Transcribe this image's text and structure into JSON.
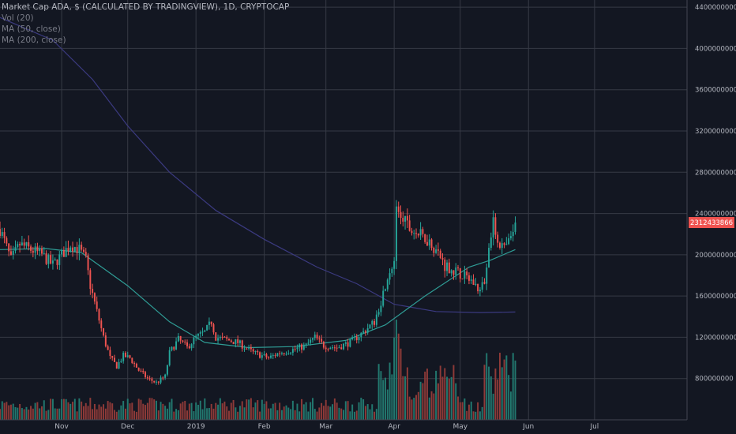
{
  "legend": {
    "title": "Market Cap ADA, $ (CALCULATED BY TRADINGVIEW), 1D, CRYPTOCAP",
    "vol": "Vol (20)",
    "ma50": "MA (50, close)",
    "ma200": "MA (200, close)"
  },
  "colors": {
    "background": "#131722",
    "grid": "#363a45",
    "up": "#26a69a",
    "down": "#ef5350",
    "vol_up": "#22786f",
    "vol_down": "#8e3a38",
    "ma50": "#2f9c95",
    "ma200": "#3b3a80",
    "price_label_bg": "#ef5350"
  },
  "chart_data": {
    "type": "candlestick",
    "y_axis": {
      "ticks": [
        800000000,
        1200000000,
        1600000000,
        2000000000,
        2400000000,
        2800000000,
        3200000000,
        3600000000,
        4000000000,
        4400000000
      ],
      "tick_labels": [
        "800000000",
        "1200000000",
        "1600000000",
        "2000000000",
        "2400000000",
        "2800000000",
        "3200000000",
        "3600000000",
        "4000000000",
        "4400000000"
      ],
      "range": [
        400000000,
        4470000000
      ]
    },
    "x_axis": {
      "labels": [
        "Nov",
        "Dec",
        "2019",
        "Feb",
        "Mar",
        "Apr",
        "May",
        "Jun",
        "Jul"
      ],
      "label_dates": [
        "2018-11-01",
        "2018-12-01",
        "2019-01-01",
        "2019-02-01",
        "2019-03-01",
        "2019-04-01",
        "2019-05-01",
        "2019-06-01",
        "2019-07-01"
      ],
      "range": [
        "2018-10-04",
        "2019-08-12"
      ]
    },
    "current_price_label": "2312433866",
    "current_price": 2312433866,
    "price_points": [
      [
        "2018-10-04",
        2250000000
      ],
      [
        "2018-10-09",
        1950000000
      ],
      [
        "2018-10-13",
        2100000000
      ],
      [
        "2018-10-18",
        2050000000
      ],
      [
        "2018-10-23",
        2000000000
      ],
      [
        "2018-10-28",
        1900000000
      ],
      [
        "2018-11-01",
        2000000000
      ],
      [
        "2018-11-05",
        2100000000
      ],
      [
        "2018-11-09",
        2050000000
      ],
      [
        "2018-11-12",
        1950000000
      ],
      [
        "2018-11-14",
        1700000000
      ],
      [
        "2018-11-17",
        1450000000
      ],
      [
        "2018-11-20",
        1200000000
      ],
      [
        "2018-11-23",
        1000000000
      ],
      [
        "2018-11-26",
        920000000
      ],
      [
        "2018-11-29",
        1020000000
      ],
      [
        "2018-12-02",
        1000000000
      ],
      [
        "2018-12-06",
        880000000
      ],
      [
        "2018-12-10",
        800000000
      ],
      [
        "2018-12-14",
        760000000
      ],
      [
        "2018-12-18",
        820000000
      ],
      [
        "2018-12-20",
        1050000000
      ],
      [
        "2018-12-24",
        1180000000
      ],
      [
        "2018-12-28",
        1100000000
      ],
      [
        "2019-01-01",
        1200000000
      ],
      [
        "2019-01-05",
        1250000000
      ],
      [
        "2019-01-08",
        1350000000
      ],
      [
        "2019-01-10",
        1200000000
      ],
      [
        "2019-01-14",
        1180000000
      ],
      [
        "2019-01-20",
        1150000000
      ],
      [
        "2019-01-27",
        1050000000
      ],
      [
        "2019-02-03",
        1000000000
      ],
      [
        "2019-02-08",
        1050000000
      ],
      [
        "2019-02-14",
        1080000000
      ],
      [
        "2019-02-20",
        1120000000
      ],
      [
        "2019-02-24",
        1200000000
      ],
      [
        "2019-02-28",
        1120000000
      ],
      [
        "2019-03-06",
        1100000000
      ],
      [
        "2019-03-12",
        1150000000
      ],
      [
        "2019-03-18",
        1250000000
      ],
      [
        "2019-03-23",
        1350000000
      ],
      [
        "2019-03-26",
        1550000000
      ],
      [
        "2019-03-29",
        1800000000
      ],
      [
        "2019-04-01",
        1950000000
      ],
      [
        "2019-04-02",
        2400000000
      ],
      [
        "2019-04-05",
        2350000000
      ],
      [
        "2019-04-08",
        2250000000
      ],
      [
        "2019-04-12",
        2200000000
      ],
      [
        "2019-04-16",
        2150000000
      ],
      [
        "2019-04-20",
        2050000000
      ],
      [
        "2019-04-24",
        1900000000
      ],
      [
        "2019-04-28",
        1850000000
      ],
      [
        "2019-05-02",
        1800000000
      ],
      [
        "2019-05-06",
        1750000000
      ],
      [
        "2019-05-10",
        1650000000
      ],
      [
        "2019-05-12",
        1750000000
      ],
      [
        "2019-05-14",
        2100000000
      ],
      [
        "2019-05-16",
        2300000000
      ],
      [
        "2019-05-18",
        2150000000
      ],
      [
        "2019-05-21",
        2050000000
      ],
      [
        "2019-05-24",
        2150000000
      ],
      [
        "2019-05-26",
        2312433866
      ]
    ],
    "ma50_points": [
      [
        "2018-10-04",
        2050000000
      ],
      [
        "2018-10-25",
        2060000000
      ],
      [
        "2018-11-10",
        2020000000
      ],
      [
        "2018-12-01",
        1700000000
      ],
      [
        "2018-12-20",
        1350000000
      ],
      [
        "2019-01-05",
        1150000000
      ],
      [
        "2019-01-25",
        1100000000
      ],
      [
        "2019-02-15",
        1110000000
      ],
      [
        "2019-03-10",
        1170000000
      ],
      [
        "2019-03-28",
        1320000000
      ],
      [
        "2019-04-15",
        1600000000
      ],
      [
        "2019-05-05",
        1880000000
      ],
      [
        "2019-05-15",
        1950000000
      ],
      [
        "2019-05-26",
        2050000000
      ]
    ],
    "ma200_points": [
      [
        "2018-10-04",
        4300000000
      ],
      [
        "2018-10-28",
        4080000000
      ],
      [
        "2018-11-15",
        3700000000
      ],
      [
        "2018-12-01",
        3250000000
      ],
      [
        "2018-12-20",
        2800000000
      ],
      [
        "2019-01-10",
        2430000000
      ],
      [
        "2019-02-01",
        2150000000
      ],
      [
        "2019-02-25",
        1880000000
      ],
      [
        "2019-03-15",
        1720000000
      ],
      [
        "2019-04-01",
        1520000000
      ],
      [
        "2019-04-20",
        1450000000
      ],
      [
        "2019-05-10",
        1440000000
      ],
      [
        "2019-05-26",
        1445000000
      ]
    ]
  }
}
